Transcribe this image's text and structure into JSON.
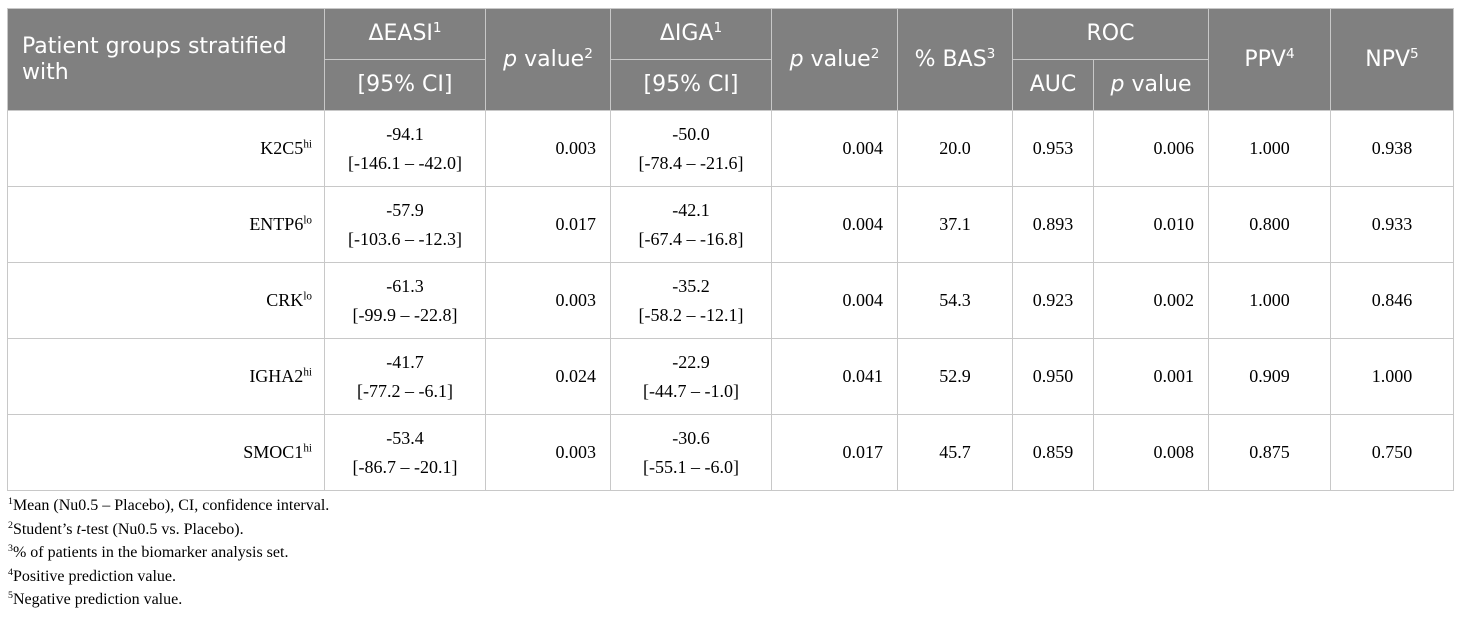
{
  "header": {
    "group_col": "Patient groups stratified with",
    "easi_label": "ΔEASI",
    "easi_sup": "1",
    "easi_ci": "[95% CI]",
    "p_label": "value",
    "p_italic": "p",
    "p_sup": "2",
    "iga_label": "ΔIGA",
    "iga_sup": "1",
    "iga_ci": "[95% CI]",
    "bas_label": "% BAS",
    "bas_sup": "3",
    "roc_label": "ROC",
    "auc_label": "AUC",
    "roc_p_italic": "p",
    "roc_p_label": "value",
    "ppv_label": "PPV",
    "ppv_sup": "4",
    "npv_label": "NPV",
    "npv_sup": "5"
  },
  "rows": [
    {
      "gene": "K2C5",
      "sup": "hi",
      "easi_mean": "-94.1",
      "easi_ci": "[-146.1 – -42.0]",
      "easi_p": "0.003",
      "iga_mean": "-50.0",
      "iga_ci": "[-78.4 – -21.6]",
      "iga_p": "0.004",
      "bas": "20.0",
      "auc": "0.953",
      "roc_p": "0.006",
      "ppv": "1.000",
      "npv": "0.938"
    },
    {
      "gene": "ENTP6",
      "sup": "lo",
      "easi_mean": "-57.9",
      "easi_ci": "[-103.6 – -12.3]",
      "easi_p": "0.017",
      "iga_mean": "-42.1",
      "iga_ci": "[-67.4 – -16.8]",
      "iga_p": "0.004",
      "bas": "37.1",
      "auc": "0.893",
      "roc_p": "0.010",
      "ppv": "0.800",
      "npv": "0.933"
    },
    {
      "gene": "CRK",
      "sup": "lo",
      "easi_mean": "-61.3",
      "easi_ci": "[-99.9 – -22.8]",
      "easi_p": "0.003",
      "iga_mean": "-35.2",
      "iga_ci": "[-58.2 – -12.1]",
      "iga_p": "0.004",
      "bas": "54.3",
      "auc": "0.923",
      "roc_p": "0.002",
      "ppv": "1.000",
      "npv": "0.846"
    },
    {
      "gene": "IGHA2",
      "sup": "hi",
      "easi_mean": "-41.7",
      "easi_ci": "[-77.2 – -6.1]",
      "easi_p": "0.024",
      "iga_mean": "-22.9",
      "iga_ci": "[-44.7 – -1.0]",
      "iga_p": "0.041",
      "bas": "52.9",
      "auc": "0.950",
      "roc_p": "0.001",
      "ppv": "0.909",
      "npv": "1.000"
    },
    {
      "gene": "SMOC1",
      "sup": "hi",
      "easi_mean": "-53.4",
      "easi_ci": "[-86.7 – -20.1]",
      "easi_p": "0.003",
      "iga_mean": "-30.6",
      "iga_ci": "[-55.1 – -6.0]",
      "iga_p": "0.017",
      "bas": "45.7",
      "auc": "0.859",
      "roc_p": "0.008",
      "ppv": "0.875",
      "npv": "0.750"
    }
  ],
  "notes": {
    "n1_sup": "1",
    "n1": "Mean (Nu0.5 – Placebo), CI, confidence interval.",
    "n2_sup": "2",
    "n2_pre": "Student’s ",
    "n2_italic": "t",
    "n2_post": "-test (Nu0.5 vs. Placebo).",
    "n3_sup": "3",
    "n3": "% of patients in the biomarker analysis set.",
    "n4_sup": "4",
    "n4": "Positive prediction value.",
    "n5_sup": "5",
    "n5": "Negative prediction value."
  }
}
